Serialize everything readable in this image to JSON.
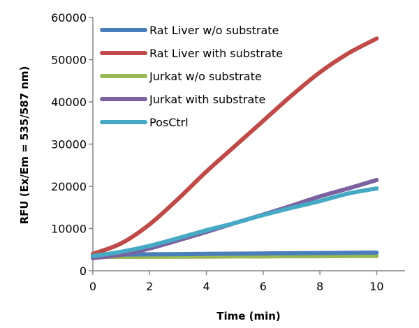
{
  "chart_data": {
    "type": "line",
    "title": "",
    "xlabel": "Time (min)",
    "ylabel": "RFU (Ex/Em = 535/587 nm)",
    "xlim": [
      0,
      11
    ],
    "ylim": [
      0,
      60000
    ],
    "xticks": [
      0,
      2,
      4,
      6,
      8,
      10
    ],
    "yticks": [
      0,
      10000,
      20000,
      30000,
      40000,
      50000,
      60000
    ],
    "grid": false,
    "legend_position": "top-left",
    "x": [
      0,
      1,
      2,
      3,
      4,
      5,
      6,
      7,
      8,
      9,
      10
    ],
    "series": [
      {
        "name": "Rat Liver w/o substrate",
        "color": "#4a7ebb",
        "values": [
          3800,
          3850,
          3900,
          3950,
          4000,
          4050,
          4100,
          4150,
          4200,
          4250,
          4300
        ]
      },
      {
        "name": "Rat Liver with substrate",
        "color": "#be4b48",
        "values": [
          4000,
          6500,
          11000,
          17000,
          23500,
          29500,
          35500,
          41500,
          47000,
          51500,
          55000
        ]
      },
      {
        "name": "Jurkat w/o substrate",
        "color": "#98b954",
        "values": [
          3300,
          3300,
          3300,
          3350,
          3350,
          3400,
          3400,
          3450,
          3450,
          3500,
          3500
        ]
      },
      {
        "name": "Jurkat with substrate",
        "color": "#7d60a0",
        "values": [
          3000,
          3800,
          5300,
          7200,
          9200,
          11300,
          13300,
          15400,
          17600,
          19500,
          21500
        ]
      },
      {
        "name": "PosCtrl",
        "color": "#46aac5",
        "values": [
          3500,
          4500,
          5900,
          7700,
          9600,
          11300,
          13200,
          14900,
          16500,
          18300,
          19500
        ]
      }
    ]
  }
}
